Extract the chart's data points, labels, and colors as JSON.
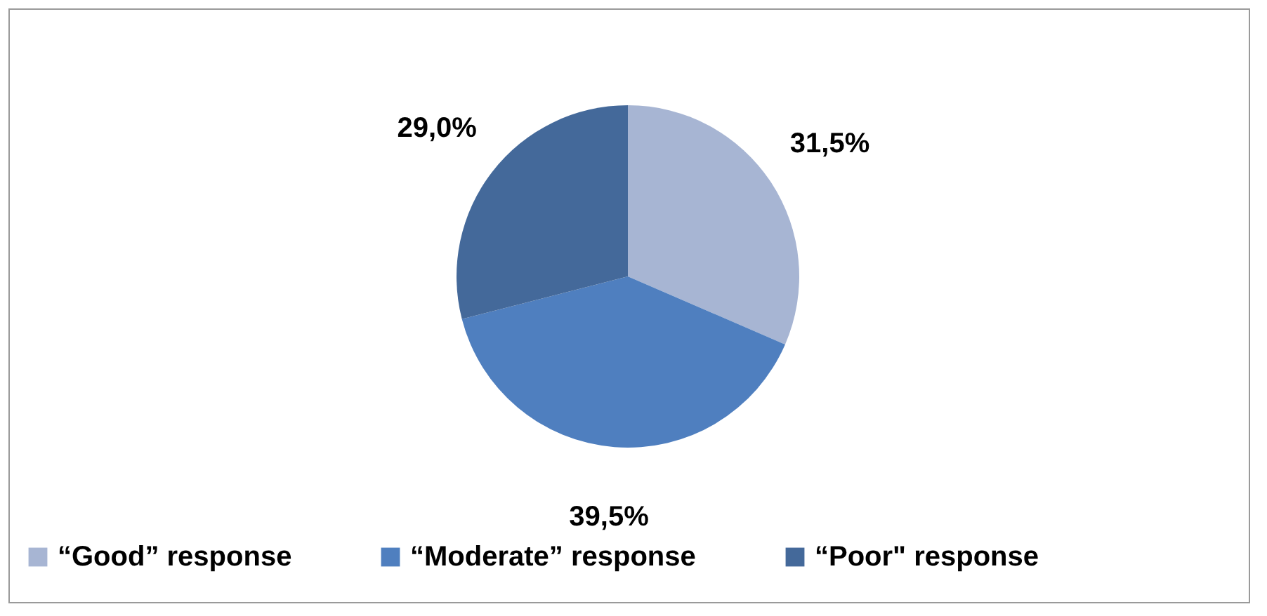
{
  "chart_data": {
    "type": "pie",
    "categories": [
      "“Good” response",
      "“Moderate” response",
      "“Poor\" response"
    ],
    "values": [
      31.5,
      39.5,
      29.0
    ],
    "value_labels": [
      "31,5%",
      "39,5%",
      "29,0%"
    ],
    "colors": [
      "#a7b5d3",
      "#4f7fbf",
      "#44699a"
    ],
    "legend": "bottom"
  }
}
